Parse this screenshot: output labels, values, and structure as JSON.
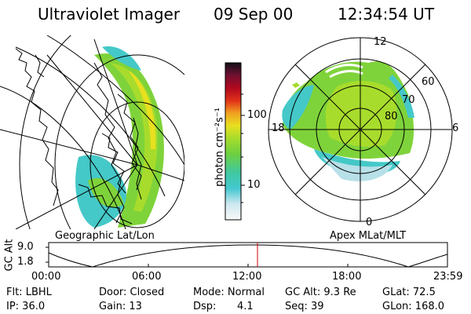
{
  "header": {
    "instrument": "Ultraviolet Imager",
    "date": "09 Sep 00",
    "time": "12:34:54 UT"
  },
  "colorbar": {
    "unit_label": "photon cm⁻²s⁻¹",
    "ticks": [
      "100",
      "10"
    ]
  },
  "left_panel": {
    "caption": "Geographic Lat/Lon"
  },
  "right_panel": {
    "caption": "Apex MLat/MLT",
    "mlt_labels": {
      "top": "12",
      "left": "18",
      "right": "6",
      "bottom": "0"
    },
    "lat_labels": [
      "60",
      "70",
      "80"
    ]
  },
  "orbit_plot": {
    "ylabel": "GC Alt",
    "y_ticks": [
      "9.0",
      "1.8"
    ],
    "x_ticks": [
      "00:00",
      "06:00",
      "12:00",
      "18:00",
      "23:59"
    ],
    "current_marker_time": "12:34:54"
  },
  "status": {
    "filter": "Flt: LBHL",
    "ip": "IP: 36.0",
    "door": "Door: Closed",
    "gain": "Gain: 13",
    "mode": "Mode: Normal",
    "dsp_label": "Dsp:",
    "dsp_value": "4.1",
    "gc_alt": "GC Alt: 9.3 Re",
    "seq": "Seq: 39",
    "glat": "GLat:  72.5",
    "glon": "GLon: 168.0"
  },
  "colors": {
    "marker": "#d00000",
    "aurora_green": "#7fd33a",
    "aurora_cyan": "#45c8c8",
    "aurora_yellow": "#e8e020"
  }
}
